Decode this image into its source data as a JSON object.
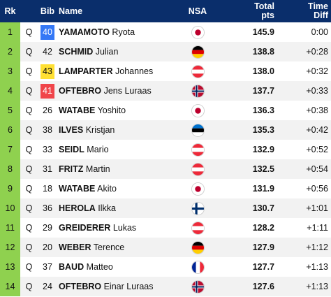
{
  "headers": {
    "rk": "Rk",
    "bib": "Bib",
    "name": "Name",
    "nsa": "NSA",
    "pts_line1": "Total",
    "pts_line2": "pts",
    "diff_line1": "Time",
    "diff_line2": "Diff"
  },
  "rows": [
    {
      "rk": "1",
      "q": "Q",
      "bib": "40",
      "bib_color": "blue",
      "last": "YAMAMOTO",
      "first": "Ryota",
      "nsa": "JPN",
      "flag": "japan-flag-icon",
      "pts": "145.9",
      "diff": "0:00"
    },
    {
      "rk": "2",
      "q": "Q",
      "bib": "42",
      "bib_color": "none",
      "last": "SCHMID",
      "first": "Julian",
      "nsa": "GER",
      "flag": "germany-flag-icon",
      "pts": "138.8",
      "diff": "+0:28"
    },
    {
      "rk": "3",
      "q": "Q",
      "bib": "43",
      "bib_color": "yellow",
      "last": "LAMPARTER",
      "first": "Johannes",
      "nsa": "AUT",
      "flag": "austria-flag-icon",
      "pts": "138.0",
      "diff": "+0:32"
    },
    {
      "rk": "4",
      "q": "Q",
      "bib": "41",
      "bib_color": "red",
      "last": "OFTEBRO",
      "first": "Jens Luraas",
      "nsa": "NOR",
      "flag": "norway-flag-icon",
      "pts": "137.7",
      "diff": "+0:33"
    },
    {
      "rk": "5",
      "q": "Q",
      "bib": "26",
      "bib_color": "none",
      "last": "WATABE",
      "first": "Yoshito",
      "nsa": "JPN",
      "flag": "japan-flag-icon",
      "pts": "136.3",
      "diff": "+0:38"
    },
    {
      "rk": "6",
      "q": "Q",
      "bib": "38",
      "bib_color": "none",
      "last": "ILVES",
      "first": "Kristjan",
      "nsa": "EST",
      "flag": "estonia-flag-icon",
      "pts": "135.3",
      "diff": "+0:42"
    },
    {
      "rk": "7",
      "q": "Q",
      "bib": "33",
      "bib_color": "none",
      "last": "SEIDL",
      "first": "Mario",
      "nsa": "AUT",
      "flag": "austria-flag-icon",
      "pts": "132.9",
      "diff": "+0:52"
    },
    {
      "rk": "8",
      "q": "Q",
      "bib": "31",
      "bib_color": "none",
      "last": "FRITZ",
      "first": "Martin",
      "nsa": "AUT",
      "flag": "austria-flag-icon",
      "pts": "132.5",
      "diff": "+0:54"
    },
    {
      "rk": "9",
      "q": "Q",
      "bib": "18",
      "bib_color": "none",
      "last": "WATABE",
      "first": "Akito",
      "nsa": "JPN",
      "flag": "japan-flag-icon",
      "pts": "131.9",
      "diff": "+0:56"
    },
    {
      "rk": "10",
      "q": "Q",
      "bib": "36",
      "bib_color": "none",
      "last": "HEROLA",
      "first": "Ilkka",
      "nsa": "FIN",
      "flag": "finland-flag-icon",
      "pts": "130.7",
      "diff": "+1:01"
    },
    {
      "rk": "11",
      "q": "Q",
      "bib": "29",
      "bib_color": "none",
      "last": "GREIDERER",
      "first": "Lukas",
      "nsa": "AUT",
      "flag": "austria-flag-icon",
      "pts": "128.2",
      "diff": "+1:11"
    },
    {
      "rk": "12",
      "q": "Q",
      "bib": "20",
      "bib_color": "none",
      "last": "WEBER",
      "first": "Terence",
      "nsa": "GER",
      "flag": "germany-flag-icon",
      "pts": "127.9",
      "diff": "+1:12"
    },
    {
      "rk": "13",
      "q": "Q",
      "bib": "37",
      "bib_color": "none",
      "last": "BAUD",
      "first": "Matteo",
      "nsa": "FRA",
      "flag": "france-flag-icon",
      "pts": "127.7",
      "diff": "+1:13"
    },
    {
      "rk": "14",
      "q": "Q",
      "bib": "24",
      "bib_color": "none",
      "last": "OFTEBRO",
      "first": "Einar Luraas",
      "nsa": "NOR",
      "flag": "norway-flag-icon",
      "pts": "127.6",
      "diff": "+1:13"
    }
  ],
  "colors": {
    "header_bg": "#0a2e6b",
    "rank_bg": "#8fd14f",
    "bib_blue": "#3478f6",
    "bib_yellow": "#ffe033",
    "bib_red": "#f0454a",
    "row_alt": "#f2f2f2"
  }
}
